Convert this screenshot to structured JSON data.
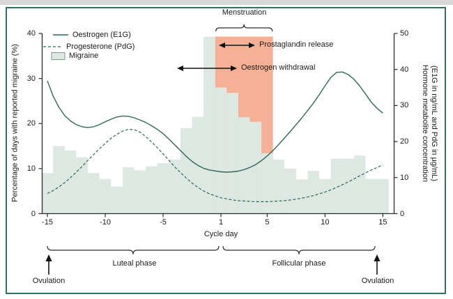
{
  "figure": {
    "legend": [
      {
        "label": "Oestrogen (E1G)",
        "style": "solid-line"
      },
      {
        "label": "Progesterone (PdG)",
        "style": "dashed-line"
      },
      {
        "label": "Migraine",
        "style": "filled-box"
      }
    ],
    "annotations": {
      "menstruation": "Menstruation",
      "prostaglandin": "Prostaglandin release",
      "oestrogen_withdrawal": "Oestrogen withdrawal",
      "luteal_phase": "Luteal phase",
      "follicular_phase": "Follicular phase",
      "ovulation_left": "Ovulation",
      "ovulation_right": "Ovulation",
      "xlabel": "Cycle day",
      "ylabel_left": "Percentage of days with reported migraine (%)",
      "ylabel_right_line1": "Hormone metabolite concentration",
      "ylabel_right_line2": "(E1G in ng/mL and PdG in µg/mL)"
    },
    "colors": {
      "bar_fill": "#dce8e1",
      "bar_legend_border": "#7d9a8d",
      "menstruation_fill": "#f6b096",
      "curve": "#2e6857",
      "axis": "#2b2b2b",
      "frame": "#2e6f66",
      "text": "#1a1a1a",
      "page_edge": "#d8d8d8"
    }
  },
  "chart_data": {
    "type": "combo-bar-line",
    "x_axis": {
      "label": "Cycle day",
      "ticks": [
        -15,
        -10,
        -5,
        1,
        5,
        10,
        15
      ],
      "range": [
        -15,
        15
      ],
      "note": "no day 0; day -1 is adjacent to day 1"
    },
    "y_left": {
      "label": "Percentage of days with reported migraine (%)",
      "range": [
        0,
        40
      ],
      "ticks": [
        0,
        10,
        20,
        30,
        40
      ]
    },
    "y_right": {
      "label": "Hormone metabolite concentration (E1G in ng/mL and PdG in µg/mL)",
      "range": [
        0,
        50
      ],
      "ticks": [
        0,
        10,
        20,
        30,
        40,
        50
      ]
    },
    "grid": false,
    "legend_position": "top-left-inside",
    "bars": {
      "name": "Migraine",
      "axis": "left",
      "days": [
        -15,
        -14,
        -13,
        -12,
        -11,
        -10,
        -9,
        -8,
        -7,
        -6,
        -5,
        -4,
        -3,
        -2,
        -1,
        1,
        2,
        3,
        4,
        5,
        6,
        7,
        8,
        9,
        10,
        11,
        12,
        13,
        14,
        15
      ],
      "values": [
        9,
        15,
        14,
        12.5,
        9,
        7.7,
        6,
        10.3,
        9.6,
        10.5,
        11.2,
        12,
        19,
        21.5,
        39.3,
        28,
        26.8,
        21.4,
        20.4,
        13.4,
        12,
        10,
        7.6,
        9.5,
        7.7,
        12.2,
        12.2,
        12.9,
        7.7,
        7.7
      ]
    },
    "menstruation_window": {
      "day_start": 1,
      "day_end": 5,
      "top_value_left_axis": 39.3
    },
    "series": [
      {
        "name": "Oestrogen (E1G)",
        "axis": "right",
        "style": "solid",
        "points": [
          [
            -15,
            36.8
          ],
          [
            -14.5,
            32.6
          ],
          [
            -14,
            29.5
          ],
          [
            -13.5,
            27.2
          ],
          [
            -13,
            25.7
          ],
          [
            -12.5,
            24.7
          ],
          [
            -12,
            24.1
          ],
          [
            -11.5,
            23.9
          ],
          [
            -11,
            24.1
          ],
          [
            -10.5,
            24.7
          ],
          [
            -10,
            25.5
          ],
          [
            -9.5,
            26.2
          ],
          [
            -9,
            26.8
          ],
          [
            -8.5,
            27.1
          ],
          [
            -8,
            27.0
          ],
          [
            -7.5,
            26.6
          ],
          [
            -7,
            26.0
          ],
          [
            -6.5,
            25.3
          ],
          [
            -6,
            24.4
          ],
          [
            -5.5,
            23.4
          ],
          [
            -5,
            22.2
          ],
          [
            -4.5,
            20.7
          ],
          [
            -4,
            19.1
          ],
          [
            -3.5,
            17.5
          ],
          [
            -3,
            15.9
          ],
          [
            -2.5,
            14.5
          ],
          [
            -2,
            13.4
          ],
          [
            -1.5,
            12.6
          ],
          [
            -1,
            12.1
          ],
          [
            1,
            11.6
          ],
          [
            1.5,
            11.5
          ],
          [
            2,
            11.6
          ],
          [
            2.5,
            11.8
          ],
          [
            3,
            12.2
          ],
          [
            3.5,
            12.8
          ],
          [
            4,
            13.6
          ],
          [
            4.5,
            14.7
          ],
          [
            5,
            16.0
          ],
          [
            5.5,
            17.5
          ],
          [
            6,
            19.2
          ],
          [
            6.5,
            21.0
          ],
          [
            7,
            22.8
          ],
          [
            7.5,
            24.7
          ],
          [
            8,
            26.6
          ],
          [
            8.5,
            28.6
          ],
          [
            9,
            30.7
          ],
          [
            9.5,
            33.0
          ],
          [
            10,
            35.5
          ],
          [
            10.5,
            37.8
          ],
          [
            11,
            39.2
          ],
          [
            11.5,
            39.3
          ],
          [
            12,
            38.6
          ],
          [
            12.5,
            37.3
          ],
          [
            13,
            35.4
          ],
          [
            13.5,
            33.2
          ],
          [
            14,
            30.9
          ],
          [
            14.5,
            29.2
          ],
          [
            15,
            27.9
          ]
        ]
      },
      {
        "name": "Progesterone (PdG)",
        "axis": "right",
        "style": "dashed",
        "points": [
          [
            -15,
            5.6
          ],
          [
            -14.5,
            6.4
          ],
          [
            -14,
            7.4
          ],
          [
            -13.5,
            8.6
          ],
          [
            -13,
            10.0
          ],
          [
            -12.5,
            11.5
          ],
          [
            -12,
            13.1
          ],
          [
            -11.5,
            14.8
          ],
          [
            -11,
            16.4
          ],
          [
            -10.5,
            18.0
          ],
          [
            -10,
            19.5
          ],
          [
            -9.5,
            20.9
          ],
          [
            -9,
            22.0
          ],
          [
            -8.5,
            22.9
          ],
          [
            -8,
            23.4
          ],
          [
            -7.5,
            23.3
          ],
          [
            -7,
            22.6
          ],
          [
            -6.5,
            21.4
          ],
          [
            -6,
            19.9
          ],
          [
            -5.5,
            18.3
          ],
          [
            -5,
            16.6
          ],
          [
            -4.5,
            14.8
          ],
          [
            -4,
            13.0
          ],
          [
            -3.5,
            11.4
          ],
          [
            -3,
            9.9
          ],
          [
            -2.5,
            8.5
          ],
          [
            -2,
            7.3
          ],
          [
            -1.5,
            6.3
          ],
          [
            -1,
            5.5
          ],
          [
            1,
            4.4
          ],
          [
            1.5,
            4.1
          ],
          [
            2,
            3.8
          ],
          [
            2.5,
            3.6
          ],
          [
            3,
            3.5
          ],
          [
            3.5,
            3.4
          ],
          [
            4,
            3.3
          ],
          [
            4.5,
            3.3
          ],
          [
            5,
            3.3
          ],
          [
            5.5,
            3.4
          ],
          [
            6,
            3.5
          ],
          [
            6.5,
            3.6
          ],
          [
            7,
            3.8
          ],
          [
            7.5,
            4.0
          ],
          [
            8,
            4.3
          ],
          [
            8.5,
            4.6
          ],
          [
            9,
            5.0
          ],
          [
            9.5,
            5.5
          ],
          [
            10,
            6.0
          ],
          [
            10.5,
            6.6
          ],
          [
            11,
            7.3
          ],
          [
            11.5,
            8.0
          ],
          [
            12,
            8.8
          ],
          [
            12.5,
            9.6
          ],
          [
            13,
            10.5
          ],
          [
            13.5,
            11.3
          ],
          [
            14,
            12.1
          ],
          [
            14.5,
            12.8
          ],
          [
            15,
            13.5
          ]
        ]
      }
    ]
  }
}
